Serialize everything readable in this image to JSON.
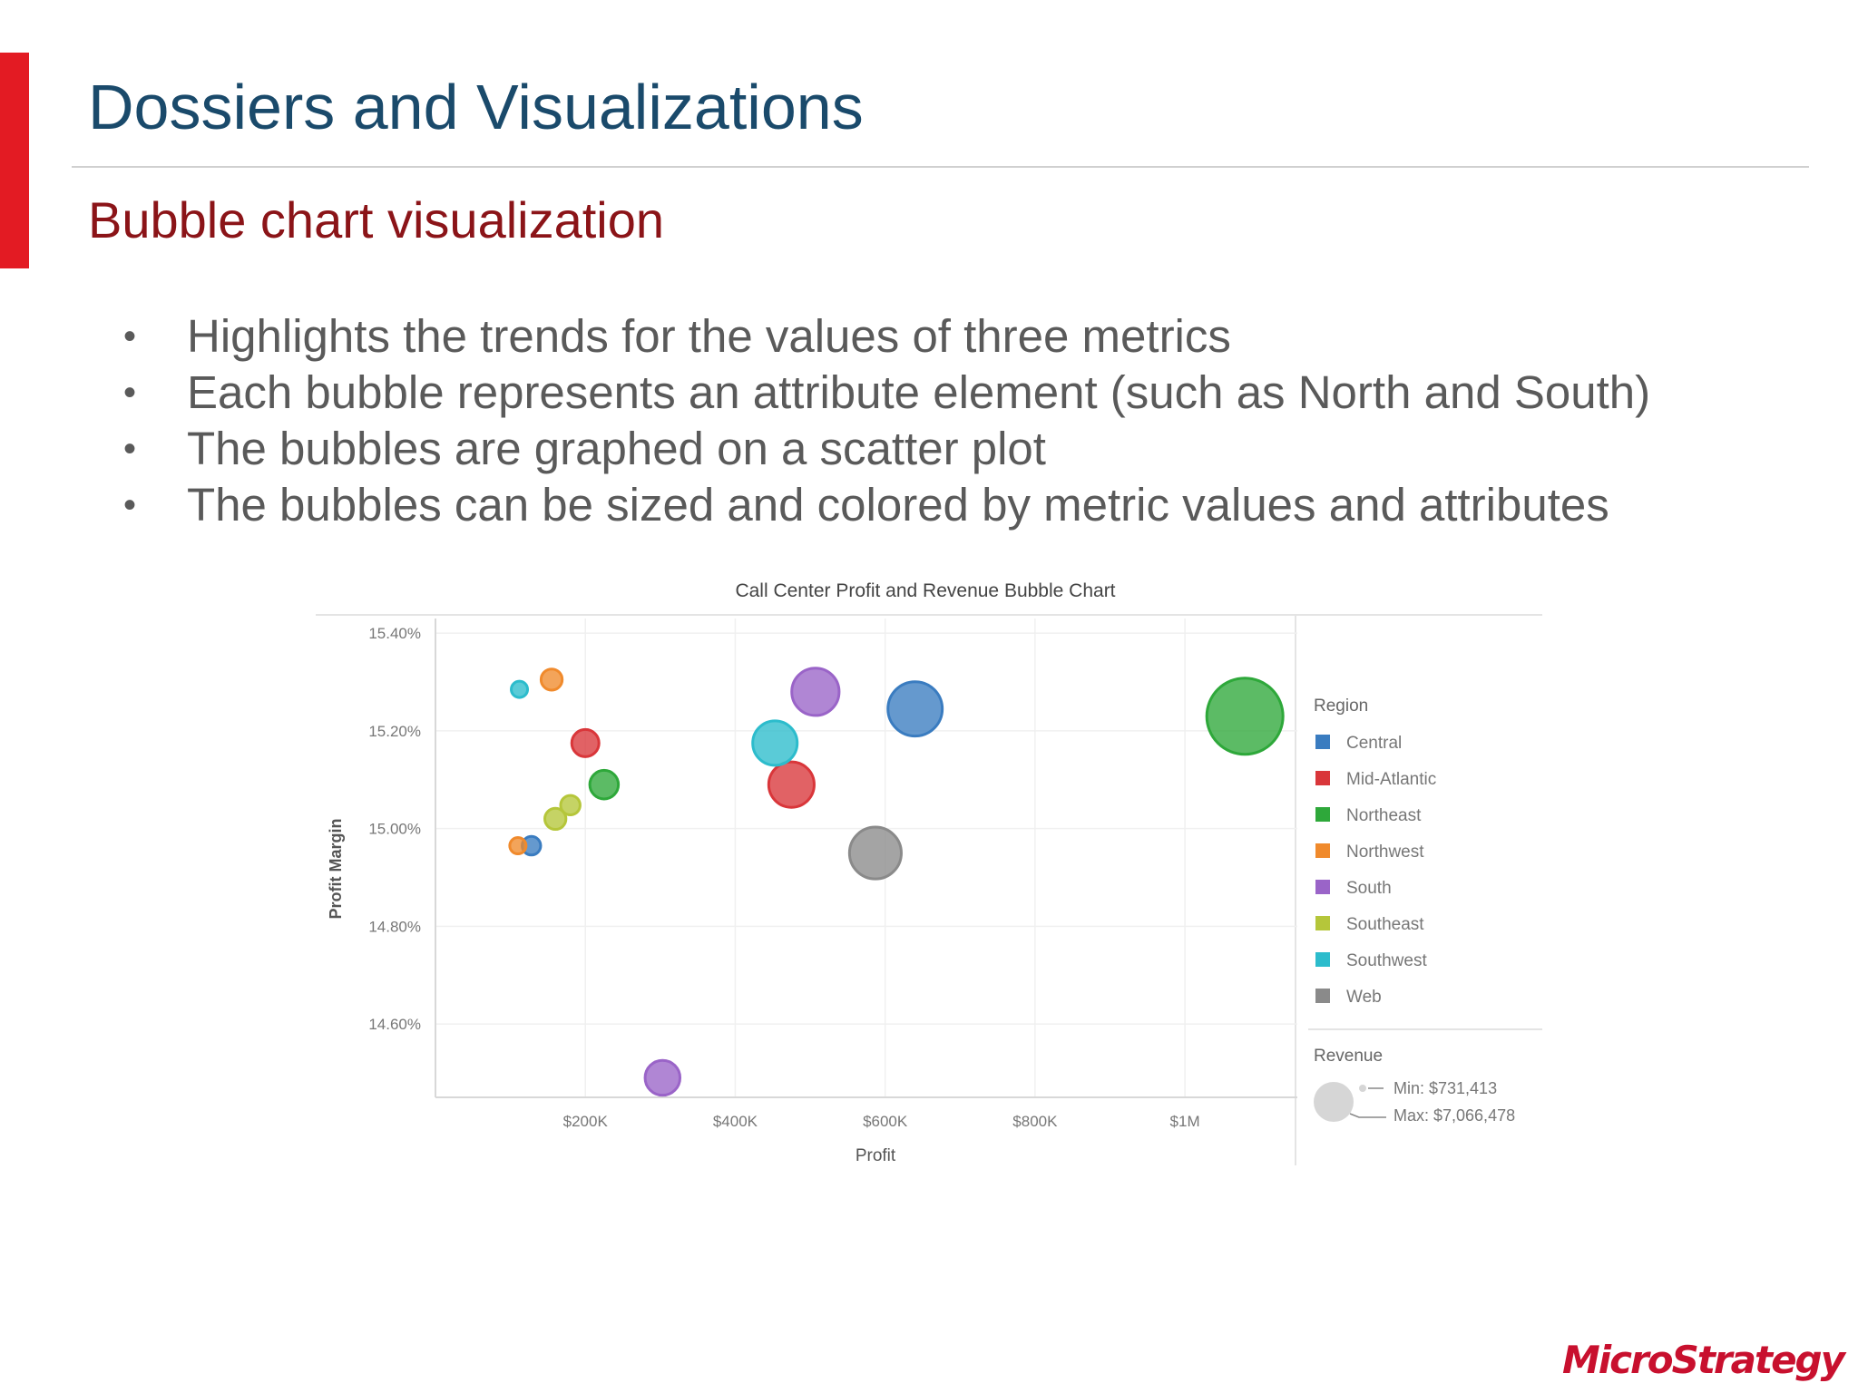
{
  "slide": {
    "title": "Dossiers and Visualizations",
    "subtitle": "Bubble chart visualization",
    "bullet_glyph": "•",
    "bullets": [
      "Highlights the trends for the values of three metrics",
      "Each bubble represents an attribute element (such as North and South)",
      "The bubbles are graphed on a scatter plot",
      "The bubbles can be sized and colored by metric values and attributes"
    ],
    "logo_text": "MicroStrategy",
    "accent_color": "#e31b23"
  },
  "chart_data": {
    "type": "scatter",
    "title": "Call Center Profit and Revenue Bubble Chart",
    "xlabel": "Profit",
    "ylabel": "Profit Margin",
    "xlim": [
      0,
      1150000
    ],
    "ylim": [
      14.45,
      15.43
    ],
    "x_ticks": [
      200000,
      400000,
      600000,
      800000,
      1000000
    ],
    "x_tick_labels": [
      "$200K",
      "$400K",
      "$600K",
      "$800K",
      "$1M"
    ],
    "y_ticks": [
      15.4,
      15.2,
      15.0,
      14.8,
      14.6
    ],
    "y_tick_labels": [
      "15.40%",
      "15.20%",
      "15.00%",
      "14.80%",
      "14.60%"
    ],
    "grid": true,
    "legend_position": "right",
    "legend_title": "Region",
    "series": [
      {
        "name": "Central",
        "color": "#3a7cc0",
        "points": [
          {
            "x": 128000,
            "y": 14.965,
            "revenue": 850000
          },
          {
            "x": 640000,
            "y": 15.245,
            "revenue": 4000000
          }
        ]
      },
      {
        "name": "Mid-Atlantic",
        "color": "#d9363a",
        "points": [
          {
            "x": 200000,
            "y": 15.175,
            "revenue": 1400000
          },
          {
            "x": 475000,
            "y": 15.09,
            "revenue": 3000000
          }
        ]
      },
      {
        "name": "Northeast",
        "color": "#2ea83a",
        "points": [
          {
            "x": 225000,
            "y": 15.09,
            "revenue": 1500000
          },
          {
            "x": 1080000,
            "y": 15.23,
            "revenue": 7066478
          }
        ]
      },
      {
        "name": "Northwest",
        "color": "#f08a2c",
        "points": [
          {
            "x": 110000,
            "y": 14.965,
            "revenue": 731413
          },
          {
            "x": 155000,
            "y": 15.305,
            "revenue": 1000000
          }
        ]
      },
      {
        "name": "South",
        "color": "#9a64c8",
        "points": [
          {
            "x": 303000,
            "y": 14.49,
            "revenue": 2000000
          },
          {
            "x": 507000,
            "y": 15.28,
            "revenue": 3200000
          }
        ]
      },
      {
        "name": "Southeast",
        "color": "#b5c63a",
        "points": [
          {
            "x": 160000,
            "y": 15.02,
            "revenue": 1000000
          },
          {
            "x": 180000,
            "y": 15.048,
            "revenue": 900000
          }
        ]
      },
      {
        "name": "Southwest",
        "color": "#2cbccc",
        "points": [
          {
            "x": 112000,
            "y": 15.285,
            "revenue": 731413
          },
          {
            "x": 453000,
            "y": 15.175,
            "revenue": 2900000
          }
        ]
      },
      {
        "name": "Web",
        "color": "#8a8a8a",
        "points": [
          {
            "x": 587000,
            "y": 14.95,
            "revenue": 3700000
          }
        ]
      }
    ],
    "size_legend": {
      "title": "Revenue",
      "min_label": "Min: $731,413",
      "max_label": "Max: $7,066,478",
      "min_value": 731413,
      "max_value": 7066478
    }
  }
}
